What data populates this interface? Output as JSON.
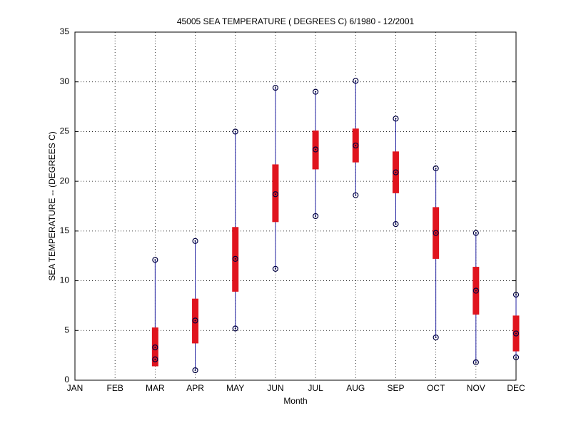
{
  "chart_data": {
    "type": "box",
    "title": "45005  SEA TEMPERATURE ( DEGREES C) 6/1980 - 12/2001",
    "x_label": "Month",
    "y_label": "SEA TEMPERATURE -- (DEGREES C)",
    "categories": [
      "JAN",
      "FEB",
      "MAR",
      "APR",
      "MAY",
      "JUN",
      "JUL",
      "AUG",
      "SEP",
      "OCT",
      "NOV",
      "DEC"
    ],
    "low": [
      null,
      null,
      2.1,
      1.0,
      5.2,
      11.2,
      16.5,
      18.6,
      15.7,
      4.3,
      1.8,
      2.3
    ],
    "q1": [
      null,
      null,
      1.4,
      3.7,
      8.9,
      15.9,
      21.2,
      21.9,
      18.8,
      12.2,
      6.6,
      2.9
    ],
    "median": [
      null,
      null,
      3.3,
      6.0,
      12.2,
      18.7,
      23.2,
      23.6,
      20.9,
      14.8,
      9.0,
      4.7
    ],
    "q3": [
      null,
      null,
      5.3,
      8.2,
      15.4,
      21.7,
      25.1,
      25.3,
      23.0,
      17.4,
      11.4,
      6.5
    ],
    "high": [
      null,
      null,
      12.1,
      14.0,
      25.0,
      29.4,
      29.0,
      30.1,
      26.3,
      21.3,
      14.8,
      8.6
    ],
    "box_color": "#e0141e",
    "whisker_color": "#2020a0",
    "marker_color": "#000040",
    "ylim": [
      0,
      35
    ],
    "yticks": [
      0,
      5,
      10,
      15,
      20,
      25,
      30,
      35
    ],
    "grid": true
  }
}
